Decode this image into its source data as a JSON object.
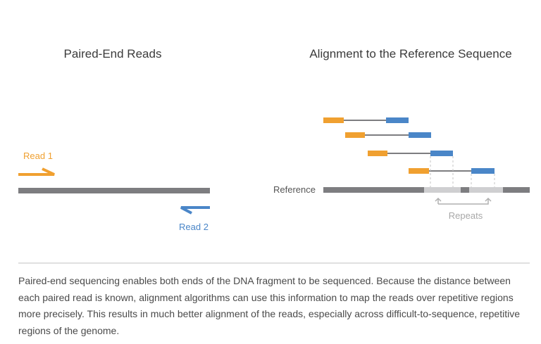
{
  "titles": {
    "left": "Paired-End Reads",
    "right": "Alignment to the Reference Sequence"
  },
  "labels": {
    "read1": "Read 1",
    "read2": "Read 2",
    "reference": "Reference",
    "repeats": "Repeats"
  },
  "caption": "Paired-end sequencing enables both ends of the DNA fragment to be sequenced. Because the distance between each paired read is known, alignment algorithms can use this information to map the reads over repetitive regions more precisely. This results in much better alignment of the reads, especially across difficult-to-sequence, repetitive regions of the genome.",
  "colors": {
    "read1": "#f0a030",
    "read2": "#4a86c8",
    "dna": "#7d7d80",
    "repeat": "#cfcfd1",
    "muted": "#a8a8a8",
    "divider": "#d6d6d6"
  }
}
